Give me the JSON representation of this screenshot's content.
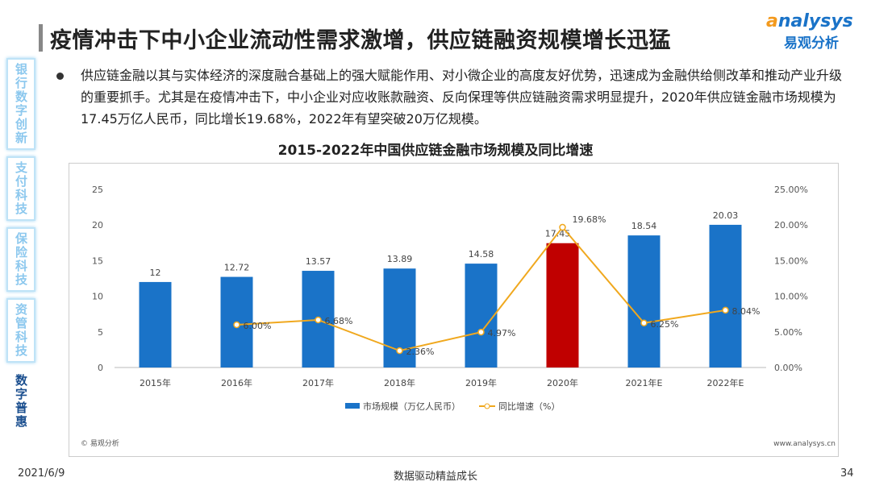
{
  "header": {
    "title": "疫情冲击下中小企业流动性需求激增，供应链融资规模增长迅猛",
    "logo_en": "analysys",
    "logo_cn": "易观分析"
  },
  "sidebar": {
    "items": [
      {
        "label": "银行数字创新",
        "active": false
      },
      {
        "label": "支付科技",
        "active": false
      },
      {
        "label": "保险科技",
        "active": false
      },
      {
        "label": "资管科技",
        "active": false
      },
      {
        "label": "数字普惠",
        "active": true
      }
    ]
  },
  "body": {
    "paragraph": "供应链金融以其与实体经济的深度融合基础上的强大赋能作用、对小微企业的高度友好优势，迅速成为金融供给侧改革和推动产业升级的重要抓手。尤其是在疫情冲击下，中小企业对应收账款融资、反向保理等供应链融资需求明显提升，2020年供应链金融市场规模为17.45万亿人民币，同比增长19.68%，2022年有望突破20万亿规模。"
  },
  "chart_data": {
    "type": "bar+line",
    "title": "2015-2022年中国供应链金融市场规模及同比增速",
    "categories": [
      "2015年",
      "2016年",
      "2017年",
      "2018年",
      "2019年",
      "2020年",
      "2021年E",
      "2022年E"
    ],
    "series": [
      {
        "name": "市场规模（万亿人民币）",
        "type": "bar",
        "axis": "left",
        "values": [
          12,
          12.72,
          13.57,
          13.89,
          14.58,
          17.45,
          18.54,
          20.03
        ],
        "labels": [
          "12",
          "12.72",
          "13.57",
          "13.89",
          "14.58",
          "17.45",
          "18.54",
          "20.03"
        ],
        "color": "#1a73c8",
        "highlight_index": 5,
        "highlight_color": "#c00000"
      },
      {
        "name": "同比增速（%）",
        "type": "line",
        "axis": "right",
        "values": [
          null,
          6.0,
          6.68,
          2.36,
          4.97,
          19.68,
          6.25,
          8.04
        ],
        "labels": [
          "",
          "6.00%",
          "6.68%",
          "2.36%",
          "4.97%",
          "19.68%",
          "6.25%",
          "8.04%"
        ],
        "color": "#f0a81e"
      }
    ],
    "ylim_left": [
      0,
      25
    ],
    "yticks_left": [
      "0",
      "5",
      "10",
      "15",
      "20",
      "25"
    ],
    "ylim_right": [
      0,
      25
    ],
    "yticks_right": [
      "0.00%",
      "5.00%",
      "10.00%",
      "15.00%",
      "20.00%",
      "25.00%"
    ],
    "grid": false,
    "legend": "bottom",
    "source": "© 易观分析",
    "site": "www.analysys.cn"
  },
  "footer": {
    "date": "2021/6/9",
    "slogan": "数据驱动精益成长",
    "page": "34"
  }
}
